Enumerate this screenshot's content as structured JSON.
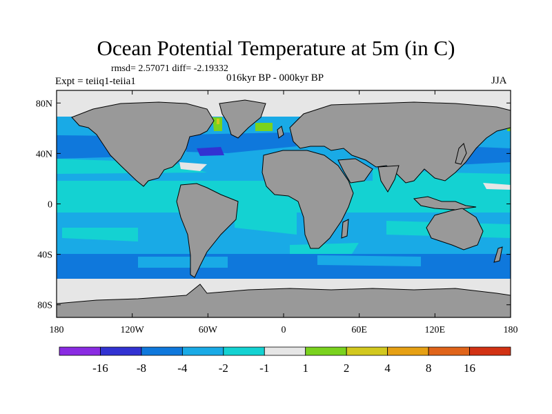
{
  "title": "Ocean Potential Temperature at 5m (in C)",
  "stats_line": "rmsd= 2.57071   diff= -2.19332",
  "expt_label": "Expt = teiiq1-teiia1",
  "period_label": "016kyr BP - 000kyr BP",
  "season_label": "JJA",
  "map": {
    "projection": "cylindrical equidistant",
    "lon_range": [
      -180,
      180
    ],
    "lat_range": [
      -90,
      90
    ],
    "land_color": "#999999",
    "lat_ticks": [
      {
        "value": 80,
        "label": "80N"
      },
      {
        "value": 40,
        "label": "40N"
      },
      {
        "value": 0,
        "label": "0"
      },
      {
        "value": -40,
        "label": "40S"
      },
      {
        "value": -80,
        "label": "80S"
      }
    ],
    "lon_ticks": [
      {
        "value": -180,
        "label": "180"
      },
      {
        "value": -120,
        "label": "120W"
      },
      {
        "value": -60,
        "label": "60W"
      },
      {
        "value": 0,
        "label": "0"
      },
      {
        "value": 60,
        "label": "60E"
      },
      {
        "value": 120,
        "label": "120E"
      },
      {
        "value": 180,
        "label": "180"
      }
    ]
  },
  "colorbar": {
    "colors": [
      "#8a2be2",
      "#3232d2",
      "#0f78dc",
      "#19aae6",
      "#14d2d2",
      "#e6e6e6",
      "#7ad21e",
      "#d2c81e",
      "#e6a014",
      "#e0641a",
      "#d23214"
    ],
    "labels": [
      "-16",
      "-8",
      "-4",
      "-2",
      "-1",
      "1",
      "2",
      "4",
      "8",
      "16"
    ]
  }
}
